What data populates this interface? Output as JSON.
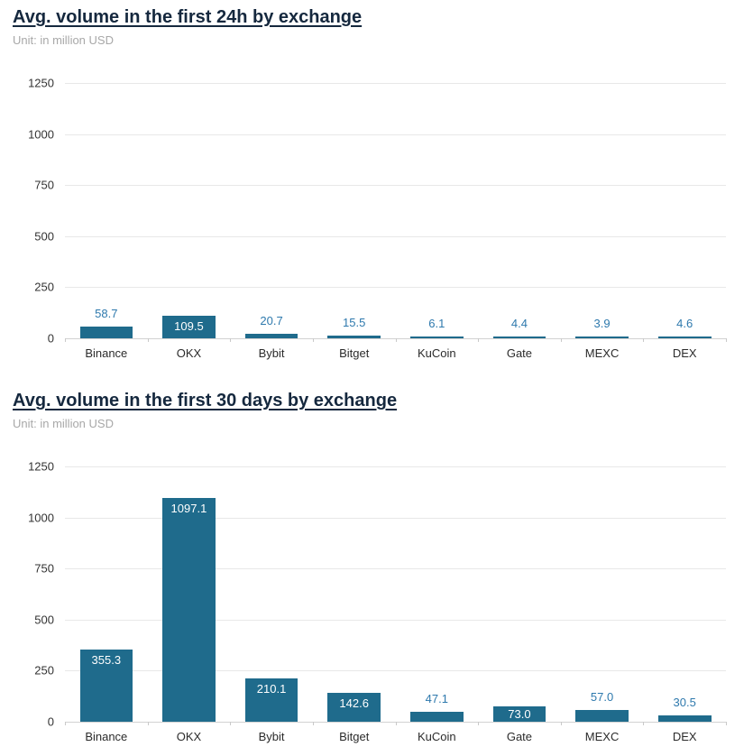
{
  "chart_data": [
    {
      "type": "bar",
      "title": "Avg. volume in the first 24h by exchange",
      "subtitle": "Unit: in million USD",
      "categories": [
        "Binance",
        "OKX",
        "Bybit",
        "Bitget",
        "KuCoin",
        "Gate",
        "MEXC",
        "DEX"
      ],
      "values": [
        58.7,
        109.5,
        20.7,
        15.5,
        6.1,
        4.4,
        3.9,
        4.6
      ],
      "ylim": [
        0,
        1250
      ],
      "yticks": [
        0,
        250,
        500,
        750,
        1000,
        1250
      ],
      "grid": true,
      "legend": "none",
      "bar_color": "#1f6b8c",
      "label_color_outside": "#2e79ad",
      "label_color_inside": "#ffffff"
    },
    {
      "type": "bar",
      "title": "Avg. volume in the first 30 days by exchange",
      "subtitle": "Unit: in million USD",
      "categories": [
        "Binance",
        "OKX",
        "Bybit",
        "Bitget",
        "KuCoin",
        "Gate",
        "MEXC",
        "DEX"
      ],
      "values": [
        355.3,
        1097.1,
        210.1,
        142.6,
        47.1,
        73.0,
        57.0,
        30.5
      ],
      "ylim": [
        0,
        1250
      ],
      "yticks": [
        0,
        250,
        500,
        750,
        1000,
        1250
      ],
      "grid": true,
      "legend": "none",
      "bar_color": "#1f6b8c",
      "label_color_outside": "#2e79ad",
      "label_color_inside": "#ffffff"
    }
  ]
}
